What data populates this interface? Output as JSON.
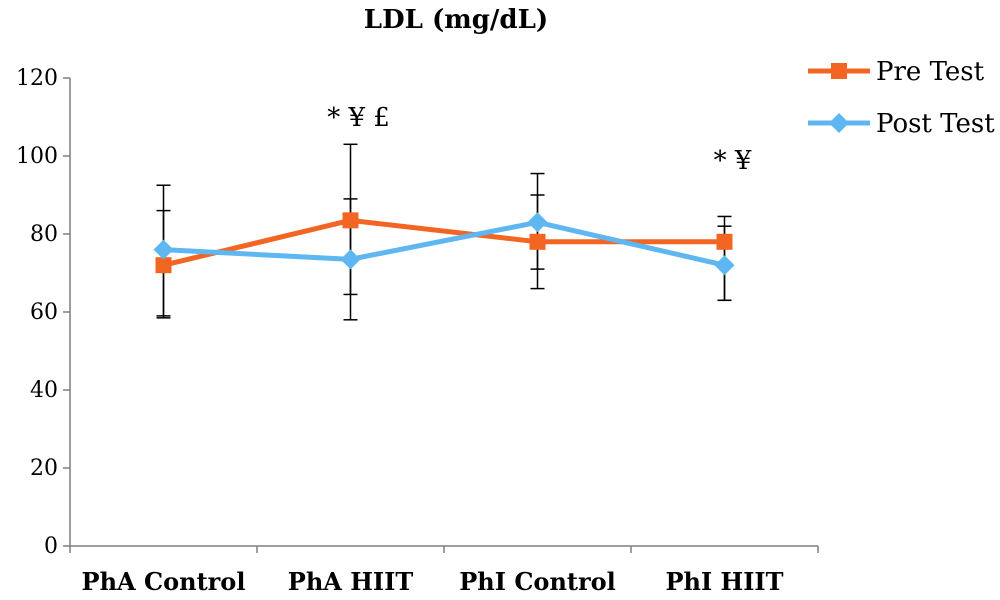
{
  "chart_data": {
    "type": "line",
    "title": "LDL (mg/dL)",
    "categories": [
      "PhA Control",
      "PhA HIIT",
      "PhI Control",
      "PhI HIIT"
    ],
    "ylim": [
      0,
      120
    ],
    "yticks": [
      0,
      20,
      40,
      60,
      80,
      100,
      120
    ],
    "grid": false,
    "legend_position": "top-right",
    "series": [
      {
        "name": "Pre Test",
        "color": "#f26522",
        "marker": "square",
        "values": [
          72,
          83.5,
          78,
          78
        ],
        "err_low": [
          58.5,
          64.5,
          66,
          63
        ],
        "err_high": [
          86,
          103,
          90,
          84.5
        ]
      },
      {
        "name": "Post Test",
        "color": "#5eb7f0",
        "marker": "diamond",
        "values": [
          76,
          73.5,
          83,
          72
        ],
        "err_low": [
          59,
          58,
          71,
          63
        ],
        "err_high": [
          92.5,
          89,
          95.5,
          82
        ]
      }
    ],
    "annotations": [
      {
        "text": "* ¥ £",
        "category": "PhA HIIT",
        "y": 110
      },
      {
        "text": "*   ¥",
        "category": "PhI HIIT",
        "y": 99
      }
    ]
  }
}
